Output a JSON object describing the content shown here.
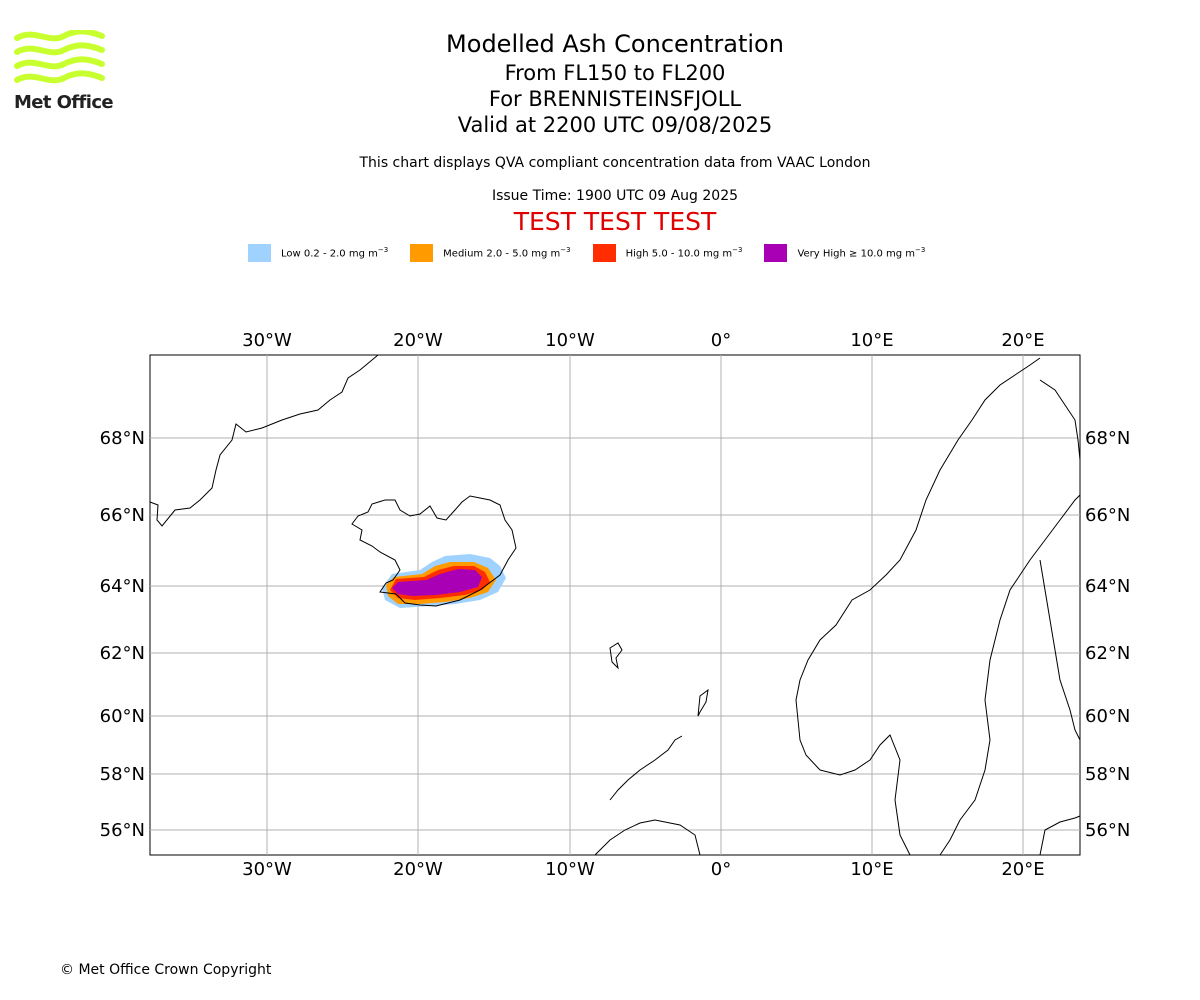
{
  "header": {
    "logo_text": "Met Office",
    "title": "Modelled Ash Concentration",
    "level_range": "From FL150 to FL200",
    "volcano": "For BRENNISTEINSFJOLL",
    "valid_time": "Valid at 2200 UTC 09/08/2025",
    "description": "This chart displays QVA compliant concentration data from VAAC London",
    "issue_time": "Issue Time: 1900 UTC 09 Aug 2025",
    "test_banner": "TEST TEST TEST"
  },
  "legend": [
    {
      "label": "Low 0.2 - 2.0 mg m",
      "color": "#a0d2ff"
    },
    {
      "label": "Medium 2.0 - 5.0 mg m",
      "color": "#ff9b00"
    },
    {
      "label": "High 5.0 - 10.0 mg m",
      "color": "#ff2d00"
    },
    {
      "label": "Very High ≥ 10.0 mg m",
      "color": "#aa00b5"
    }
  ],
  "legend_unit_exponent": "−3",
  "map": {
    "lon_labels": [
      "30°W",
      "20°W",
      "10°W",
      "0°",
      "10°E",
      "20°E"
    ],
    "lat_labels": [
      "68°N",
      "66°N",
      "64°N",
      "62°N",
      "60°N",
      "58°N",
      "56°N"
    ],
    "grid_color": "#b0b0b0"
  },
  "footer": {
    "copyright": "© Met Office Crown Copyright"
  }
}
